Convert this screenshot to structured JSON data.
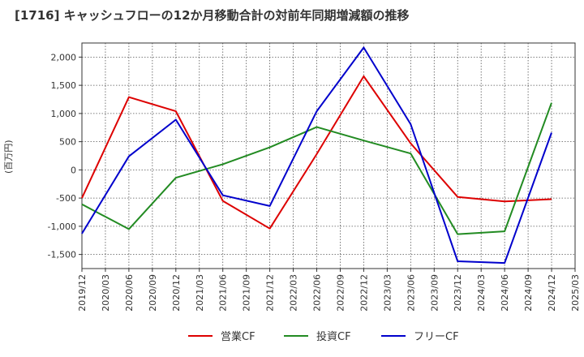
{
  "chart_data": {
    "type": "line",
    "title": "[1716]  キャッシュフローの12か月移動合計の対前年同期増減額の推移",
    "ylabel": "(百万円)",
    "xlabel": "",
    "ylim": [
      -1750,
      2250
    ],
    "yticks": [
      -1500,
      -1000,
      -500,
      0,
      500,
      1000,
      1500,
      2000
    ],
    "ytick_labels": [
      "-1,500",
      "-1,000",
      "-500",
      "0",
      "500",
      "1,000",
      "1,500",
      "2,000"
    ],
    "xticks": [
      "2019/12",
      "2020/03",
      "2020/06",
      "2020/09",
      "2020/12",
      "2021/03",
      "2021/06",
      "2021/09",
      "2021/12",
      "2022/03",
      "2022/06",
      "2022/09",
      "2022/12",
      "2023/03",
      "2023/06",
      "2023/09",
      "2023/12",
      "2024/03",
      "2024/06",
      "2024/09",
      "2024/12",
      "2025/03"
    ],
    "grid": true,
    "legend_position": "bottom",
    "series": [
      {
        "name": "営業CF",
        "color": "#dd0000",
        "points": [
          [
            "2019/12",
            -500
          ],
          [
            "2020/06",
            1290
          ],
          [
            "2020/12",
            1040
          ],
          [
            "2021/06",
            -550
          ],
          [
            "2021/12",
            -1040
          ],
          [
            "2022/06",
            280
          ],
          [
            "2022/12",
            1660
          ],
          [
            "2023/06",
            470
          ],
          [
            "2023/12",
            -480
          ],
          [
            "2024/06",
            -560
          ],
          [
            "2024/12",
            -520
          ]
        ]
      },
      {
        "name": "投資CF",
        "color": "#228b22",
        "points": [
          [
            "2019/12",
            -610
          ],
          [
            "2020/06",
            -1050
          ],
          [
            "2020/12",
            -140
          ],
          [
            "2021/06",
            100
          ],
          [
            "2021/12",
            400
          ],
          [
            "2022/06",
            760
          ],
          [
            "2022/12",
            520
          ],
          [
            "2023/06",
            290
          ],
          [
            "2023/12",
            -1140
          ],
          [
            "2024/06",
            -1090
          ],
          [
            "2024/12",
            1190
          ]
        ]
      },
      {
        "name": "フリーCF",
        "color": "#0000cc",
        "points": [
          [
            "2019/12",
            -1130
          ],
          [
            "2020/06",
            240
          ],
          [
            "2020/12",
            890
          ],
          [
            "2021/06",
            -450
          ],
          [
            "2021/12",
            -640
          ],
          [
            "2022/06",
            1040
          ],
          [
            "2022/12",
            2170
          ],
          [
            "2023/06",
            810
          ],
          [
            "2023/12",
            -1620
          ],
          [
            "2024/06",
            -1650
          ],
          [
            "2024/12",
            660
          ]
        ]
      }
    ]
  }
}
